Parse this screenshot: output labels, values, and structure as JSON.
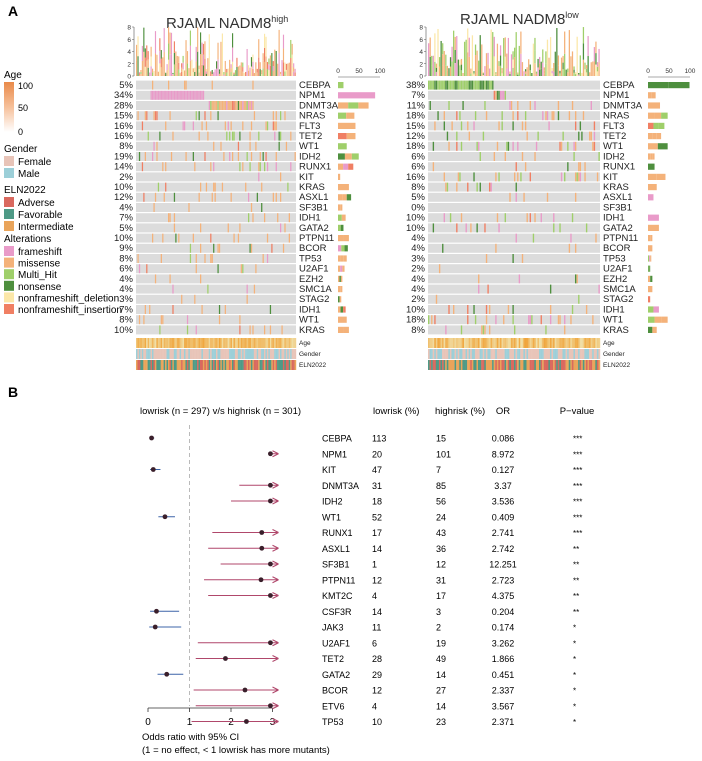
{
  "panel_a": {
    "label": "A",
    "left_title": "RJAML NADM8",
    "left_title_sup": "high",
    "right_title": "RJAML NADM8",
    "right_title_sup": "low",
    "top_axis_ticks": [
      "0",
      "2",
      "4",
      "6",
      "8"
    ],
    "right_axis_ticks": [
      "0",
      "50",
      "100"
    ],
    "legend": {
      "age_title": "Age",
      "age_ticks": [
        "100",
        "50",
        "0"
      ],
      "gender_title": "Gender",
      "gender_items": [
        {
          "label": "Female",
          "color": "#e8c4b8"
        },
        {
          "label": "Male",
          "color": "#9ccfd8"
        }
      ],
      "eln_title": "ELN2022",
      "eln_items": [
        {
          "label": "Adverse",
          "color": "#d9695f"
        },
        {
          "label": "Favorable",
          "color": "#4e9a86"
        },
        {
          "label": "Intermediate",
          "color": "#e9a45a"
        }
      ],
      "alt_title": "Alterations",
      "alt_items": [
        {
          "label": "frameshift",
          "color": "#e99bc9"
        },
        {
          "label": "missense",
          "color": "#f4b27a"
        },
        {
          "label": "Multi_Hit",
          "color": "#9fcf6a"
        },
        {
          "label": "nonsense",
          "color": "#4e8f3e"
        },
        {
          "label": "nonframeshift_deletion",
          "color": "#fbe7a8"
        },
        {
          "label": "nonframeshift_insertion",
          "color": "#f07f63"
        }
      ]
    },
    "annotation_labels": [
      "Age",
      "Gender",
      "ELN2022"
    ],
    "left_rows": [
      {
        "gene": "CEBPA",
        "pct": "5%"
      },
      {
        "gene": "NPM1",
        "pct": "34%"
      },
      {
        "gene": "DNMT3A",
        "pct": "28%"
      },
      {
        "gene": "NRAS",
        "pct": "15%"
      },
      {
        "gene": "FLT3",
        "pct": "16%"
      },
      {
        "gene": "TET2",
        "pct": "16%"
      },
      {
        "gene": "WT1",
        "pct": "8%"
      },
      {
        "gene": "IDH2",
        "pct": "19%"
      },
      {
        "gene": "RUNX1",
        "pct": "14%"
      },
      {
        "gene": "KIT",
        "pct": "2%"
      },
      {
        "gene": "KRAS",
        "pct": "10%"
      },
      {
        "gene": "ASXL1",
        "pct": "12%"
      },
      {
        "gene": "SF3B1",
        "pct": "4%"
      },
      {
        "gene": "IDH1",
        "pct": "7%"
      },
      {
        "gene": "GATA2",
        "pct": "5%"
      },
      {
        "gene": "PTPN11",
        "pct": "10%"
      },
      {
        "gene": "BCOR",
        "pct": "9%"
      },
      {
        "gene": "TP53",
        "pct": "8%"
      },
      {
        "gene": "U2AF1",
        "pct": "6%"
      },
      {
        "gene": "EZH2",
        "pct": "4%"
      },
      {
        "gene": "SMC1A",
        "pct": "4%"
      },
      {
        "gene": "STAG2",
        "pct": "3%"
      },
      {
        "gene": "IDH1",
        "pct": "7%"
      },
      {
        "gene": "WT1",
        "pct": "8%"
      },
      {
        "gene": "KRAS",
        "pct": "10%"
      }
    ],
    "right_rows": [
      {
        "gene": "CEBPA",
        "pct": "38%"
      },
      {
        "gene": "NPM1",
        "pct": "7%"
      },
      {
        "gene": "DNMT3A",
        "pct": "11%"
      },
      {
        "gene": "NRAS",
        "pct": "18%"
      },
      {
        "gene": "FLT3",
        "pct": "15%"
      },
      {
        "gene": "TET2",
        "pct": "12%"
      },
      {
        "gene": "WT1",
        "pct": "18%"
      },
      {
        "gene": "IDH2",
        "pct": "6%"
      },
      {
        "gene": "RUNX1",
        "pct": "6%"
      },
      {
        "gene": "KIT",
        "pct": "16%"
      },
      {
        "gene": "KRAS",
        "pct": "8%"
      },
      {
        "gene": "ASXL1",
        "pct": "5%"
      },
      {
        "gene": "SF3B1",
        "pct": "0%"
      },
      {
        "gene": "IDH1",
        "pct": "10%"
      },
      {
        "gene": "GATA2",
        "pct": "10%"
      },
      {
        "gene": "PTPN11",
        "pct": "4%"
      },
      {
        "gene": "BCOR",
        "pct": "4%"
      },
      {
        "gene": "TP53",
        "pct": "3%"
      },
      {
        "gene": "U2AF1",
        "pct": "2%"
      },
      {
        "gene": "EZH2",
        "pct": "4%"
      },
      {
        "gene": "SMC1A",
        "pct": "4%"
      },
      {
        "gene": "STAG2",
        "pct": "2%"
      },
      {
        "gene": "IDH1",
        "pct": "10%"
      },
      {
        "gene": "WT1",
        "pct": "18%"
      },
      {
        "gene": "KRAS",
        "pct": "8%"
      }
    ]
  },
  "panel_b": {
    "label": "B"
  },
  "chart_data": {
    "type": "scatter",
    "title": "lowrisk (n = 297) v/s highrisk (n = 301)",
    "xlabel": "Odds ratio with 95% CI",
    "xlabel_note": "(1 = no effect, < 1 lowrisk has more mutants)",
    "xlim": [
      0,
      3.4
    ],
    "x_ticks": [
      "0",
      "1",
      "2",
      "3"
    ],
    "columns": [
      "lowrisk (%)",
      "highrisk (%)",
      "OR",
      "P−value"
    ],
    "rows": [
      {
        "gene": "CEBPA",
        "low": "113",
        "high": "15",
        "or": 0.086,
        "or_label": "0.086",
        "p": "***",
        "lo": 0.05,
        "hi": 0.15,
        "arrow": false
      },
      {
        "gene": "NPM1",
        "low": "20",
        "high": "101",
        "or": 2.95,
        "or_label": "8.972",
        "p": "***",
        "lo": 2.9,
        "hi": 3.0,
        "arrow": true
      },
      {
        "gene": "KIT",
        "low": "47",
        "high": "7",
        "or": 0.127,
        "or_label": "0.127",
        "p": "***",
        "lo": 0.05,
        "hi": 0.3,
        "arrow": false
      },
      {
        "gene": "DNMT3A",
        "low": "31",
        "high": "85",
        "or": 2.95,
        "or_label": "3.37",
        "p": "***",
        "lo": 2.2,
        "hi": 3.0,
        "arrow": true
      },
      {
        "gene": "IDH2",
        "low": "18",
        "high": "56",
        "or": 2.95,
        "or_label": "3.536",
        "p": "***",
        "lo": 2.0,
        "hi": 3.0,
        "arrow": true
      },
      {
        "gene": "WT1",
        "low": "52",
        "high": "24",
        "or": 0.409,
        "or_label": "0.409",
        "p": "***",
        "lo": 0.25,
        "hi": 0.65,
        "arrow": false
      },
      {
        "gene": "RUNX1",
        "low": "17",
        "high": "43",
        "or": 2.741,
        "or_label": "2.741",
        "p": "***",
        "lo": 1.55,
        "hi": 3.0,
        "arrow": true
      },
      {
        "gene": "ASXL1",
        "low": "14",
        "high": "36",
        "or": 2.742,
        "or_label": "2.742",
        "p": "**",
        "lo": 1.45,
        "hi": 3.0,
        "arrow": true
      },
      {
        "gene": "SF3B1",
        "low": "1",
        "high": "12",
        "or": 2.95,
        "or_label": "12.251",
        "p": "**",
        "lo": 1.75,
        "hi": 3.0,
        "arrow": true
      },
      {
        "gene": "PTPN11",
        "low": "12",
        "high": "31",
        "or": 2.723,
        "or_label": "2.723",
        "p": "**",
        "lo": 1.35,
        "hi": 3.0,
        "arrow": true
      },
      {
        "gene": "KMT2C",
        "low": "4",
        "high": "17",
        "or": 2.95,
        "or_label": "4.375",
        "p": "**",
        "lo": 1.45,
        "hi": 3.0,
        "arrow": true
      },
      {
        "gene": "CSF3R",
        "low": "14",
        "high": "3",
        "or": 0.204,
        "or_label": "0.204",
        "p": "**",
        "lo": 0.05,
        "hi": 0.75,
        "arrow": false
      },
      {
        "gene": "JAK3",
        "low": "11",
        "high": "2",
        "or": 0.174,
        "or_label": "0.174",
        "p": "*",
        "lo": 0.03,
        "hi": 0.8,
        "arrow": false
      },
      {
        "gene": "U2AF1",
        "low": "6",
        "high": "19",
        "or": 2.95,
        "or_label": "3.262",
        "p": "*",
        "lo": 1.2,
        "hi": 3.0,
        "arrow": true
      },
      {
        "gene": "TET2",
        "low": "28",
        "high": "49",
        "or": 1.866,
        "or_label": "1.866",
        "p": "*",
        "lo": 1.15,
        "hi": 3.0,
        "arrow": true
      },
      {
        "gene": "GATA2",
        "low": "29",
        "high": "14",
        "or": 0.451,
        "or_label": "0.451",
        "p": "*",
        "lo": 0.23,
        "hi": 0.85,
        "arrow": false
      },
      {
        "gene": "BCOR",
        "low": "12",
        "high": "27",
        "or": 2.337,
        "or_label": "2.337",
        "p": "*",
        "lo": 1.1,
        "hi": 3.0,
        "arrow": true
      },
      {
        "gene": "ETV6",
        "low": "4",
        "high": "14",
        "or": 2.95,
        "or_label": "3.567",
        "p": "*",
        "lo": 1.15,
        "hi": 3.0,
        "arrow": true
      },
      {
        "gene": "TP53",
        "low": "10",
        "high": "23",
        "or": 2.371,
        "or_label": "2.371",
        "p": "*",
        "lo": 1.05,
        "hi": 3.0,
        "arrow": true
      }
    ]
  }
}
